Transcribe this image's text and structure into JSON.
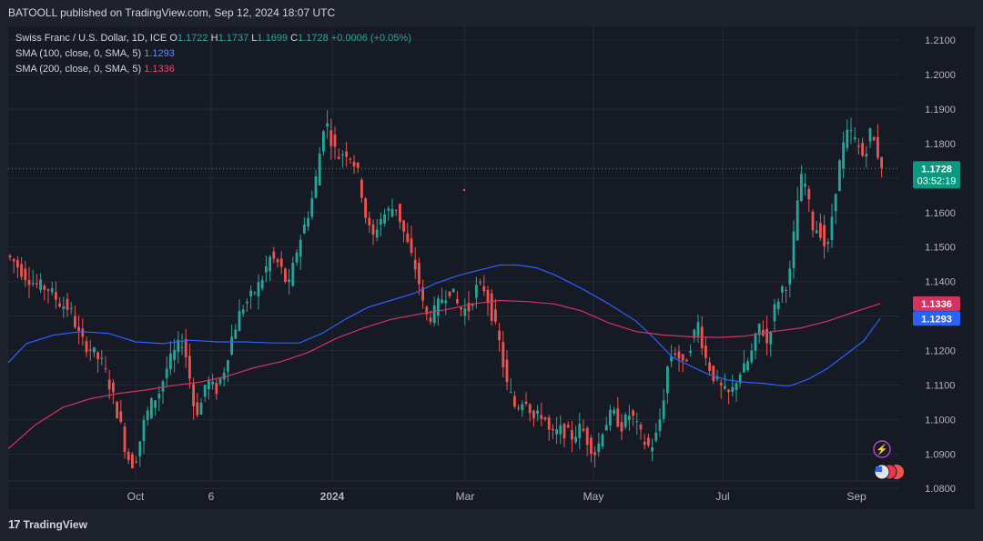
{
  "header": {
    "publisher": "BATOOLL published on TradingView.com, Sep 12, 2024 18:07 UTC"
  },
  "legend": {
    "symbol": "Swiss Franc / U.S. Dollar, 1D, ICE",
    "o_label": "O",
    "o": "1.1722",
    "h_label": "H",
    "h": "1.1737",
    "l_label": "L",
    "l": "1.1699",
    "c_label": "C",
    "c": "1.1728",
    "change": "+0.0006 (+0.05%)",
    "sma100_label": "SMA (100, close, 0, SMA, 5)",
    "sma100_value": "1.1293",
    "sma200_label": "SMA (200, close, 0, SMA, 5)",
    "sma200_value": "1.1336"
  },
  "price_tag": {
    "price": "1.1728",
    "countdown": "03:52:19"
  },
  "footer": {
    "brand": "TradingView"
  },
  "colors": {
    "up": "#26a69a",
    "down": "#ef5350",
    "sma100": "#2962ff",
    "sma200": "#d6325f",
    "background": "#161a25"
  },
  "chart_data": {
    "type": "candlestick",
    "title": "Swiss Franc / U.S. Dollar, 1D, ICE",
    "ylim": [
      1.074,
      1.214
    ],
    "y_ticks": [
      "1.2100",
      "1.2000",
      "1.1900",
      "1.1800",
      "1.1700",
      "1.1600",
      "1.1500",
      "1.1400",
      "1.1300",
      "1.1200",
      "1.1100",
      "1.1000",
      "1.0900",
      "1.0800"
    ],
    "x_ticks": [
      "Oct",
      "6",
      "2024",
      "Mar",
      "May",
      "Jul",
      "Sep"
    ],
    "last_price": 1.1728,
    "series": [
      {
        "name": "SMA (100, close, 0, SMA, 5)",
        "last": 1.1293,
        "points": [
          [
            0,
            1.1165
          ],
          [
            20,
            1.122
          ],
          [
            50,
            1.1245
          ],
          [
            80,
            1.1255
          ],
          [
            110,
            1.125
          ],
          [
            140,
            1.1225
          ],
          [
            170,
            1.122
          ],
          [
            200,
            1.123
          ],
          [
            230,
            1.1225
          ],
          [
            260,
            1.1225
          ],
          [
            290,
            1.1222
          ],
          [
            320,
            1.1222
          ],
          [
            345,
            1.125
          ],
          [
            370,
            1.129
          ],
          [
            395,
            1.1325
          ],
          [
            420,
            1.1345
          ],
          [
            445,
            1.1365
          ],
          [
            470,
            1.1395
          ],
          [
            495,
            1.1418
          ],
          [
            520,
            1.1435
          ],
          [
            540,
            1.1448
          ],
          [
            560,
            1.1448
          ],
          [
            580,
            1.144
          ],
          [
            600,
            1.142
          ],
          [
            630,
            1.138
          ],
          [
            660,
            1.1335
          ],
          [
            690,
            1.1285
          ],
          [
            710,
            1.1235
          ],
          [
            730,
            1.118
          ],
          [
            750,
            1.1155
          ],
          [
            770,
            1.113
          ],
          [
            790,
            1.1115
          ],
          [
            810,
            1.1108
          ],
          [
            830,
            1.1105
          ],
          [
            850,
            1.1098
          ],
          [
            860,
            1.1098
          ],
          [
            880,
            1.1118
          ],
          [
            900,
            1.1148
          ],
          [
            920,
            1.1188
          ],
          [
            940,
            1.1228
          ],
          [
            958,
            1.1293
          ]
        ]
      },
      {
        "name": "SMA (200, close, 0, SMA, 5)",
        "last": 1.1336,
        "points": [
          [
            0,
            1.0915
          ],
          [
            30,
            1.0985
          ],
          [
            60,
            1.1035
          ],
          [
            90,
            1.106
          ],
          [
            120,
            1.1075
          ],
          [
            150,
            1.1085
          ],
          [
            180,
            1.1098
          ],
          [
            210,
            1.1108
          ],
          [
            240,
            1.1125
          ],
          [
            270,
            1.115
          ],
          [
            300,
            1.1168
          ],
          [
            330,
            1.1195
          ],
          [
            360,
            1.1235
          ],
          [
            390,
            1.1265
          ],
          [
            420,
            1.129
          ],
          [
            450,
            1.1305
          ],
          [
            480,
            1.1318
          ],
          [
            510,
            1.1335
          ],
          [
            540,
            1.1345
          ],
          [
            570,
            1.1342
          ],
          [
            600,
            1.1335
          ],
          [
            630,
            1.1315
          ],
          [
            660,
            1.128
          ],
          [
            690,
            1.1255
          ],
          [
            720,
            1.1245
          ],
          [
            750,
            1.124
          ],
          [
            780,
            1.1238
          ],
          [
            810,
            1.1242
          ],
          [
            840,
            1.1255
          ],
          [
            870,
            1.1265
          ],
          [
            900,
            1.1285
          ],
          [
            930,
            1.1312
          ],
          [
            958,
            1.1336
          ]
        ]
      }
    ],
    "price_path": [
      [
        0,
        1.148
      ],
      [
        10,
        1.146
      ],
      [
        22,
        1.142
      ],
      [
        35,
        1.139
      ],
      [
        48,
        1.138
      ],
      [
        60,
        1.134
      ],
      [
        72,
        1.132
      ],
      [
        84,
        1.123
      ],
      [
        96,
        1.12
      ],
      [
        108,
        1.116
      ],
      [
        118,
        1.108
      ],
      [
        128,
        1.098
      ],
      [
        134,
        1.09
      ],
      [
        140,
        1.087
      ],
      [
        146,
        1.09
      ],
      [
        152,
        1.098
      ],
      [
        160,
        1.104
      ],
      [
        170,
        1.108
      ],
      [
        180,
        1.116
      ],
      [
        188,
        1.12
      ],
      [
        196,
        1.123
      ],
      [
        202,
        1.115
      ],
      [
        208,
        1.104
      ],
      [
        214,
        1.102
      ],
      [
        222,
        1.112
      ],
      [
        232,
        1.108
      ],
      [
        242,
        1.115
      ],
      [
        250,
        1.124
      ],
      [
        260,
        1.132
      ],
      [
        272,
        1.136
      ],
      [
        282,
        1.14
      ],
      [
        292,
        1.147
      ],
      [
        302,
        1.145
      ],
      [
        312,
        1.138
      ],
      [
        322,
        1.15
      ],
      [
        332,
        1.158
      ],
      [
        340,
        1.166
      ],
      [
        348,
        1.18
      ],
      [
        352,
        1.188
      ],
      [
        358,
        1.182
      ],
      [
        366,
        1.176
      ],
      [
        374,
        1.178
      ],
      [
        382,
        1.176
      ],
      [
        390,
        1.17
      ],
      [
        396,
        1.16
      ],
      [
        404,
        1.152
      ],
      [
        412,
        1.158
      ],
      [
        420,
        1.16
      ],
      [
        430,
        1.162
      ],
      [
        438,
        1.155
      ],
      [
        446,
        1.148
      ],
      [
        454,
        1.142
      ],
      [
        462,
        1.13
      ],
      [
        470,
        1.13
      ],
      [
        480,
        1.135
      ],
      [
        490,
        1.138
      ],
      [
        500,
        1.132
      ],
      [
        510,
        1.132
      ],
      [
        518,
        1.138
      ],
      [
        528,
        1.138
      ],
      [
        536,
        1.13
      ],
      [
        544,
        1.122
      ],
      [
        552,
        1.11
      ],
      [
        562,
        1.103
      ],
      [
        572,
        1.107
      ],
      [
        582,
        1.1
      ],
      [
        592,
        1.102
      ],
      [
        600,
        1.095
      ],
      [
        612,
        1.097
      ],
      [
        624,
        1.095
      ],
      [
        634,
        1.098
      ],
      [
        642,
        1.093
      ],
      [
        650,
        1.09
      ],
      [
        658,
        1.098
      ],
      [
        668,
        1.102
      ],
      [
        678,
        1.098
      ],
      [
        688,
        1.102
      ],
      [
        698,
        1.096
      ],
      [
        706,
        1.092
      ],
      [
        714,
        1.093
      ],
      [
        722,
        1.102
      ],
      [
        730,
        1.118
      ],
      [
        738,
        1.12
      ],
      [
        746,
        1.115
      ],
      [
        754,
        1.122
      ],
      [
        762,
        1.128
      ],
      [
        770,
        1.118
      ],
      [
        780,
        1.112
      ],
      [
        790,
        1.108
      ],
      [
        798,
        1.107
      ],
      [
        806,
        1.113
      ],
      [
        814,
        1.115
      ],
      [
        822,
        1.12
      ],
      [
        830,
        1.128
      ],
      [
        838,
        1.122
      ],
      [
        846,
        1.132
      ],
      [
        854,
        1.138
      ],
      [
        862,
        1.14
      ],
      [
        868,
        1.155
      ],
      [
        874,
        1.17
      ],
      [
        880,
        1.168
      ],
      [
        888,
        1.156
      ],
      [
        896,
        1.155
      ],
      [
        904,
        1.148
      ],
      [
        912,
        1.165
      ],
      [
        920,
        1.178
      ],
      [
        928,
        1.184
      ],
      [
        936,
        1.18
      ],
      [
        944,
        1.176
      ],
      [
        952,
        1.184
      ],
      [
        958,
        1.178
      ],
      [
        964,
        1.174
      ],
      [
        968,
        1.1728
      ]
    ]
  }
}
